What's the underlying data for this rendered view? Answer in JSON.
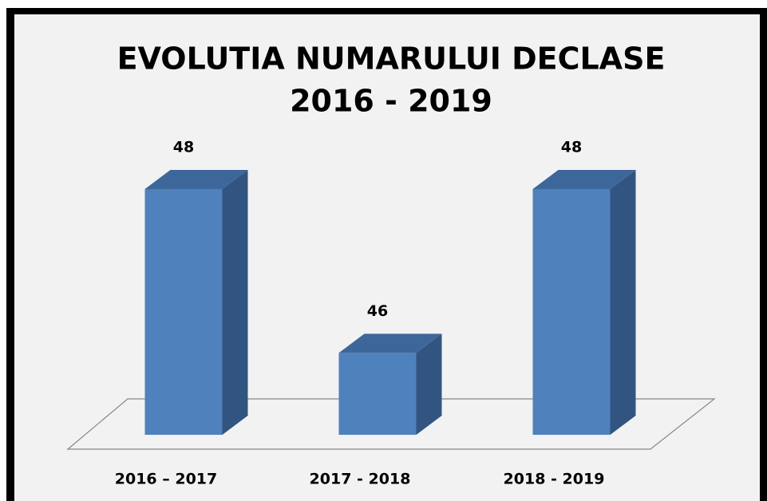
{
  "chart_data": {
    "type": "bar3d",
    "title": "EVOLUTIA NUMARULUI DECLASE",
    "subtitle": "2016 - 2019",
    "categories": [
      "2016 – 2017",
      "2017 - 2018",
      "2018 - 2019"
    ],
    "values": [
      48,
      46,
      48
    ],
    "color": "#4f81bd",
    "ylim": [
      45,
      48
    ]
  }
}
